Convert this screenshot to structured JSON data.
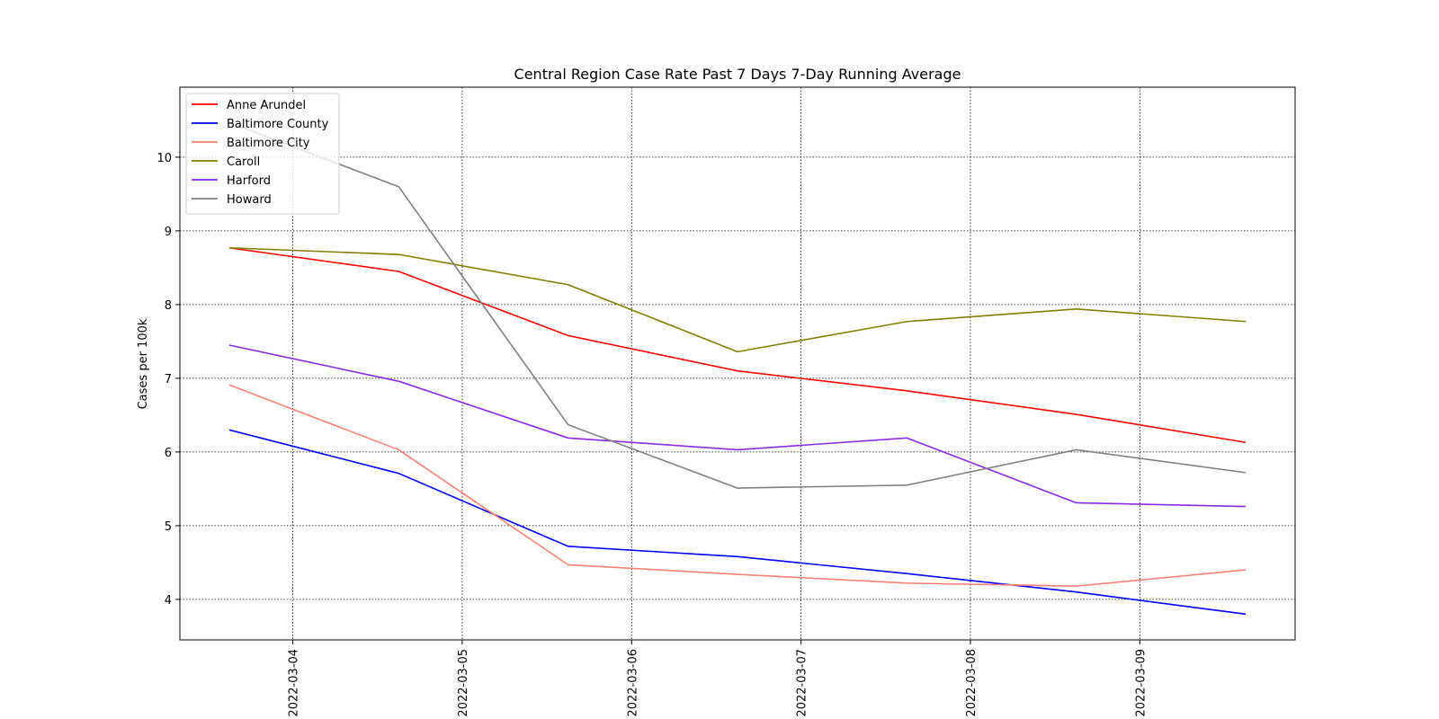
{
  "chart_data": {
    "type": "line",
    "title": "Central Region Case Rate  Past 7 Days 7-Day Running Average",
    "xlabel": "",
    "ylabel": "Cases per 100k",
    "x": [
      "2022-03-03 15:00",
      "2022-03-04 15:00",
      "2022-03-05 15:00",
      "2022-03-06 15:00",
      "2022-03-07 15:00",
      "2022-03-08 15:00",
      "2022-03-09 15:00"
    ],
    "xlim": [
      "2022-03-03 08:00",
      "2022-03-09 22:00"
    ],
    "xticks": [
      "2022-03-04",
      "2022-03-05",
      "2022-03-06",
      "2022-03-07",
      "2022-03-08",
      "2022-03-09"
    ],
    "ylim": [
      3.45,
      10.95
    ],
    "yticks": [
      4,
      5,
      6,
      7,
      8,
      9,
      10
    ],
    "grid": true,
    "legend_position": "top-left",
    "series": [
      {
        "name": "Anne Arundel",
        "color": "#ff0000",
        "values": [
          8.77,
          8.45,
          7.58,
          7.1,
          6.83,
          6.51,
          6.13
        ]
      },
      {
        "name": "Baltimore County",
        "color": "#0000ff",
        "values": [
          6.3,
          5.71,
          4.72,
          4.58,
          4.35,
          4.1,
          3.8
        ]
      },
      {
        "name": "Baltimore City",
        "color": "#fa8072",
        "values": [
          6.91,
          6.03,
          4.47,
          4.34,
          4.22,
          4.18,
          4.4
        ]
      },
      {
        "name": "Caroll",
        "color": "#808000",
        "values": [
          8.77,
          8.68,
          8.27,
          7.36,
          7.77,
          7.94,
          7.77
        ]
      },
      {
        "name": "Harford",
        "color": "#8a2be2",
        "values": [
          7.45,
          6.96,
          6.19,
          6.03,
          6.19,
          5.31,
          5.26
        ]
      },
      {
        "name": "Howard",
        "color": "#808080",
        "values": [
          10.47,
          9.6,
          6.37,
          5.51,
          5.55,
          6.03,
          5.72
        ]
      }
    ]
  }
}
